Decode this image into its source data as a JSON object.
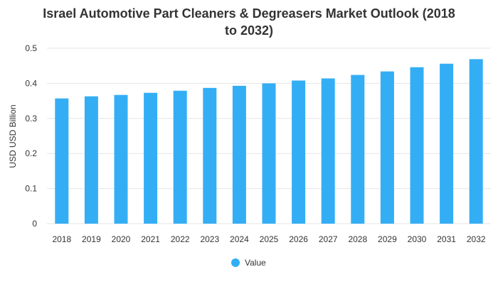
{
  "chart_data": {
    "type": "bar",
    "title": "Israel Automotive Part Cleaners & Degreasers Market Outlook (2018 to 2032)",
    "title_lines": [
      "Israel Automotive Part Cleaners & Degreasers Market Outlook (2018",
      "to 2032)"
    ],
    "xlabel": "",
    "ylabel": "USD USD Billion",
    "ylim": [
      0,
      0.5
    ],
    "yticks": [
      0,
      0.1,
      0.2,
      0.3,
      0.4,
      0.5
    ],
    "ytick_labels": [
      "0",
      "0.1",
      "0.2",
      "0.3",
      "0.4",
      "0.5"
    ],
    "categories": [
      "2018",
      "2019",
      "2020",
      "2021",
      "2022",
      "2023",
      "2024",
      "2025",
      "2026",
      "2027",
      "2028",
      "2029",
      "2030",
      "2031",
      "2032"
    ],
    "series": [
      {
        "name": "Value",
        "color": "#33aef5",
        "values": [
          0.357,
          0.363,
          0.367,
          0.373,
          0.379,
          0.387,
          0.393,
          0.4,
          0.408,
          0.414,
          0.424,
          0.434,
          0.446,
          0.456,
          0.469
        ]
      }
    ],
    "grid": true,
    "legend_position": "bottom"
  }
}
